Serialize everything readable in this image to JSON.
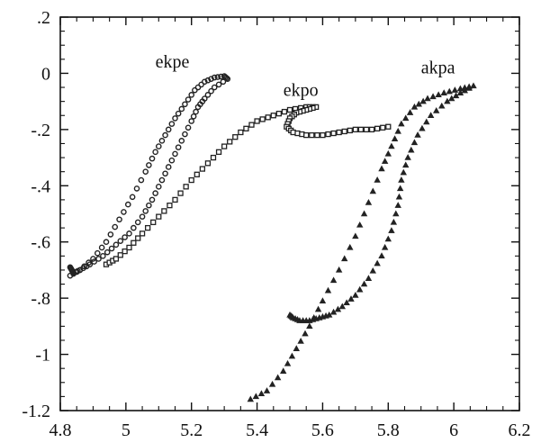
{
  "chart_data": {
    "type": "scatter",
    "title": "",
    "xlabel": "",
    "ylabel": "",
    "xlim": [
      4.8,
      6.2
    ],
    "ylim": [
      -1.2,
      0.2
    ],
    "grid": false,
    "legend": "none",
    "x_ticks": [
      {
        "value": 4.8,
        "label": "4.8"
      },
      {
        "value": 5.0,
        "label": "5"
      },
      {
        "value": 5.2,
        "label": "5.2"
      },
      {
        "value": 5.4,
        "label": "5.4"
      },
      {
        "value": 5.6,
        "label": "5.6"
      },
      {
        "value": 5.8,
        "label": "5.8"
      },
      {
        "value": 6.0,
        "label": "6"
      },
      {
        "value": 6.2,
        "label": "6.2"
      }
    ],
    "y_ticks": [
      {
        "value": 0.2,
        "label": ".2"
      },
      {
        "value": 0.0,
        "label": "0"
      },
      {
        "value": -0.2,
        "label": "-.2"
      },
      {
        "value": -0.4,
        "label": "-.4"
      },
      {
        "value": -0.6,
        "label": "-.6"
      },
      {
        "value": -0.8,
        "label": "-.8"
      },
      {
        "value": -1.0,
        "label": "-1"
      },
      {
        "value": -1.2,
        "label": "-1.2"
      }
    ],
    "series": [
      {
        "name": "ekpe",
        "marker": "circle",
        "label_at": [
          5.09,
          0.02
        ],
        "x": [
          4.83,
          4.86,
          4.9,
          4.94,
          4.98,
          5.02,
          5.06,
          5.09,
          5.12,
          5.15,
          5.18,
          5.21,
          5.24,
          5.27,
          5.3,
          5.31,
          5.27,
          5.24,
          5.22,
          5.2,
          5.17,
          5.14,
          5.11,
          5.08,
          5.05,
          5.01,
          4.97,
          4.93,
          4.89,
          4.86,
          4.84,
          4.835,
          4.83
        ],
        "y": [
          -0.72,
          -0.7,
          -0.66,
          -0.6,
          -0.52,
          -0.44,
          -0.35,
          -0.28,
          -0.22,
          -0.16,
          -0.11,
          -0.06,
          -0.03,
          -0.015,
          -0.01,
          -0.02,
          -0.05,
          -0.09,
          -0.12,
          -0.17,
          -0.24,
          -0.31,
          -0.38,
          -0.45,
          -0.51,
          -0.57,
          -0.61,
          -0.65,
          -0.68,
          -0.7,
          -0.71,
          -0.7,
          -0.69
        ]
      },
      {
        "name": "ekpo",
        "marker": "square",
        "label_at": [
          5.48,
          -0.08
        ],
        "x": [
          4.94,
          4.97,
          5.01,
          5.05,
          5.1,
          5.15,
          5.2,
          5.25,
          5.3,
          5.35,
          5.4,
          5.45,
          5.5,
          5.55,
          5.58,
          5.55,
          5.52,
          5.5,
          5.49,
          5.51,
          5.55,
          5.6,
          5.65,
          5.7,
          5.75,
          5.8
        ],
        "y": [
          -0.68,
          -0.66,
          -0.62,
          -0.57,
          -0.51,
          -0.45,
          -0.38,
          -0.32,
          -0.26,
          -0.21,
          -0.17,
          -0.15,
          -0.13,
          -0.12,
          -0.12,
          -0.13,
          -0.14,
          -0.16,
          -0.19,
          -0.21,
          -0.22,
          -0.22,
          -0.21,
          -0.2,
          -0.2,
          -0.19
        ]
      },
      {
        "name": "akpa",
        "marker": "triangle",
        "label_at": [
          5.9,
          0.0
        ],
        "x": [
          5.38,
          5.43,
          5.48,
          5.52,
          5.56,
          5.6,
          5.65,
          5.7,
          5.74,
          5.78,
          5.81,
          5.84,
          5.88,
          5.92,
          5.97,
          6.02,
          6.06,
          6.02,
          5.98,
          5.93,
          5.89,
          5.86,
          5.84,
          5.83,
          5.81,
          5.78,
          5.74,
          5.7,
          5.66,
          5.62,
          5.59,
          5.56,
          5.53,
          5.51,
          5.5
        ],
        "y": [
          -1.16,
          -1.13,
          -1.06,
          -0.98,
          -0.9,
          -0.81,
          -0.7,
          -0.58,
          -0.46,
          -0.34,
          -0.26,
          -0.18,
          -0.12,
          -0.09,
          -0.07,
          -0.055,
          -0.045,
          -0.07,
          -0.1,
          -0.15,
          -0.22,
          -0.3,
          -0.38,
          -0.47,
          -0.56,
          -0.65,
          -0.73,
          -0.79,
          -0.83,
          -0.86,
          -0.87,
          -0.88,
          -0.88,
          -0.87,
          -0.86
        ]
      }
    ]
  }
}
